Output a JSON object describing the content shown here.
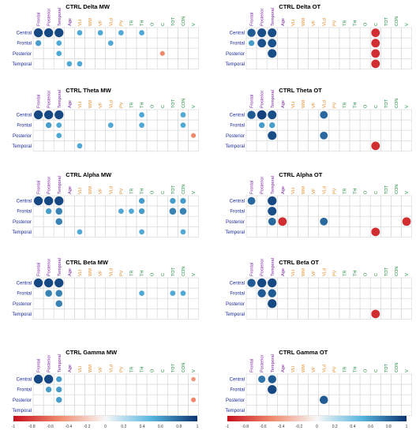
{
  "chart_data": {
    "type": "heatmap",
    "subtype": "correlation-circle-matrix",
    "rows": [
      "Central",
      "Frontal",
      "Posterior",
      "Temporal"
    ],
    "columns": [
      "Frontal",
      "Posterior",
      "Temporal",
      "Age",
      "VLI",
      "WM",
      "VF",
      "VLd",
      "PV",
      "TR",
      "TH",
      "O",
      "C",
      "TOT",
      "CON",
      "V"
    ],
    "column_colors": {
      "Frontal": "#7a1fa2",
      "Posterior": "#7a1fa2",
      "Temporal": "#7a1fa2",
      "Age": "#7a1fa2",
      "VLI": "#e8871e",
      "WM": "#e8871e",
      "VF": "#e8871e",
      "VLd": "#e8871e",
      "PV": "#e8871e",
      "TR": "#1a8a3a",
      "TH": "#1a8a3a",
      "O": "#1a8a3a",
      "C": "#1a8a3a",
      "TOT": "#1a8a3a",
      "CON": "#1a8a3a",
      "V": "#1a8a3a"
    },
    "row_label_color": "#1a2a9a",
    "grid": true,
    "colorbar": {
      "ticks": [
        -1,
        -0.8,
        -0.6,
        -0.4,
        -0.2,
        0,
        0.2,
        0.4,
        0.6,
        0.8,
        1
      ],
      "min": -1,
      "max": 1,
      "low_color": "#c8101e",
      "mid_color": "#f7f7f7",
      "high_color": "#0a3472"
    },
    "panels": [
      {
        "title": "CTRL Delta MW",
        "cells": [
          {
            "r": 0,
            "c": 0,
            "v": 0.92
          },
          {
            "r": 0,
            "c": 1,
            "v": 0.92
          },
          {
            "r": 0,
            "c": 2,
            "v": 0.92
          },
          {
            "r": 0,
            "c": 4,
            "v": 0.55
          },
          {
            "r": 0,
            "c": 6,
            "v": 0.55
          },
          {
            "r": 0,
            "c": 8,
            "v": 0.55
          },
          {
            "r": 0,
            "c": 10,
            "v": 0.55
          },
          {
            "r": 1,
            "c": 0,
            "v": 0.6
          },
          {
            "r": 1,
            "c": 2,
            "v": 0.55
          },
          {
            "r": 1,
            "c": 7,
            "v": 0.55
          },
          {
            "r": 2,
            "c": 2,
            "v": 0.55
          },
          {
            "r": 2,
            "c": 12,
            "v": -0.5
          },
          {
            "r": 3,
            "c": 3,
            "v": 0.55
          },
          {
            "r": 3,
            "c": 4,
            "v": 0.55
          }
        ]
      },
      {
        "title": "CTRL Delta OT",
        "cells": [
          {
            "r": 0,
            "c": 0,
            "v": 0.85
          },
          {
            "r": 0,
            "c": 1,
            "v": 0.9
          },
          {
            "r": 0,
            "c": 2,
            "v": 0.9
          },
          {
            "r": 0,
            "c": 12,
            "v": -0.88
          },
          {
            "r": 1,
            "c": 0,
            "v": 0.6
          },
          {
            "r": 1,
            "c": 1,
            "v": 0.88
          },
          {
            "r": 1,
            "c": 2,
            "v": 0.88
          },
          {
            "r": 1,
            "c": 12,
            "v": -0.88
          },
          {
            "r": 2,
            "c": 2,
            "v": 0.9
          },
          {
            "r": 2,
            "c": 12,
            "v": -0.88
          },
          {
            "r": 3,
            "c": 12,
            "v": -0.88
          }
        ]
      },
      {
        "title": "CTRL Theta MW",
        "cells": [
          {
            "r": 0,
            "c": 0,
            "v": 0.92
          },
          {
            "r": 0,
            "c": 1,
            "v": 0.92
          },
          {
            "r": 0,
            "c": 2,
            "v": 0.92
          },
          {
            "r": 0,
            "c": 10,
            "v": 0.55
          },
          {
            "r": 0,
            "c": 14,
            "v": 0.55
          },
          {
            "r": 1,
            "c": 1,
            "v": 0.6
          },
          {
            "r": 1,
            "c": 2,
            "v": 0.55
          },
          {
            "r": 1,
            "c": 7,
            "v": 0.55
          },
          {
            "r": 1,
            "c": 10,
            "v": 0.55
          },
          {
            "r": 1,
            "c": 14,
            "v": 0.55
          },
          {
            "r": 2,
            "c": 2,
            "v": 0.55
          },
          {
            "r": 2,
            "c": 15,
            "v": -0.5
          },
          {
            "r": 3,
            "c": 4,
            "v": 0.55
          }
        ]
      },
      {
        "title": "CTRL Theta OT",
        "cells": [
          {
            "r": 0,
            "c": 0,
            "v": 0.85
          },
          {
            "r": 0,
            "c": 1,
            "v": 0.95
          },
          {
            "r": 0,
            "c": 2,
            "v": 0.9
          },
          {
            "r": 0,
            "c": 7,
            "v": 0.8
          },
          {
            "r": 1,
            "c": 1,
            "v": 0.6
          },
          {
            "r": 1,
            "c": 2,
            "v": 0.6
          },
          {
            "r": 2,
            "c": 2,
            "v": 0.9
          },
          {
            "r": 2,
            "c": 7,
            "v": 0.8
          },
          {
            "r": 3,
            "c": 12,
            "v": -0.88
          }
        ]
      },
      {
        "title": "CTRL Alpha MW",
        "cells": [
          {
            "r": 0,
            "c": 0,
            "v": 0.92
          },
          {
            "r": 0,
            "c": 1,
            "v": 0.92
          },
          {
            "r": 0,
            "c": 2,
            "v": 0.92
          },
          {
            "r": 0,
            "c": 10,
            "v": 0.6
          },
          {
            "r": 0,
            "c": 13,
            "v": 0.6
          },
          {
            "r": 0,
            "c": 14,
            "v": 0.6
          },
          {
            "r": 1,
            "c": 1,
            "v": 0.6
          },
          {
            "r": 1,
            "c": 2,
            "v": 0.7
          },
          {
            "r": 1,
            "c": 8,
            "v": 0.55
          },
          {
            "r": 1,
            "c": 9,
            "v": 0.55
          },
          {
            "r": 1,
            "c": 10,
            "v": 0.6
          },
          {
            "r": 1,
            "c": 13,
            "v": 0.7
          },
          {
            "r": 1,
            "c": 14,
            "v": 0.7
          },
          {
            "r": 2,
            "c": 2,
            "v": 0.7
          },
          {
            "r": 3,
            "c": 4,
            "v": 0.55
          },
          {
            "r": 3,
            "c": 10,
            "v": 0.55
          },
          {
            "r": 3,
            "c": 14,
            "v": 0.55
          }
        ]
      },
      {
        "title": "CTRL Alpha OT",
        "cells": [
          {
            "r": 0,
            "c": 0,
            "v": 0.8
          },
          {
            "r": 0,
            "c": 2,
            "v": 0.92
          },
          {
            "r": 1,
            "c": 2,
            "v": 0.9
          },
          {
            "r": 2,
            "c": 2,
            "v": 0.8
          },
          {
            "r": 2,
            "c": 3,
            "v": -0.88
          },
          {
            "r": 2,
            "c": 7,
            "v": 0.8
          },
          {
            "r": 2,
            "c": 15,
            "v": -0.88
          },
          {
            "r": 3,
            "c": 12,
            "v": -0.88
          }
        ]
      },
      {
        "title": "CTRL Beta MW",
        "cells": [
          {
            "r": 0,
            "c": 0,
            "v": 0.92
          },
          {
            "r": 0,
            "c": 1,
            "v": 0.92
          },
          {
            "r": 0,
            "c": 2,
            "v": 0.92
          },
          {
            "r": 1,
            "c": 1,
            "v": 0.7
          },
          {
            "r": 1,
            "c": 2,
            "v": 0.7
          },
          {
            "r": 1,
            "c": 10,
            "v": 0.55
          },
          {
            "r": 1,
            "c": 13,
            "v": 0.55
          },
          {
            "r": 1,
            "c": 14,
            "v": 0.55
          },
          {
            "r": 2,
            "c": 2,
            "v": 0.7
          }
        ]
      },
      {
        "title": "CTRL Beta OT",
        "cells": [
          {
            "r": 0,
            "c": 0,
            "v": 0.85
          },
          {
            "r": 0,
            "c": 1,
            "v": 0.92
          },
          {
            "r": 0,
            "c": 2,
            "v": 0.92
          },
          {
            "r": 1,
            "c": 1,
            "v": 0.85
          },
          {
            "r": 1,
            "c": 2,
            "v": 0.85
          },
          {
            "r": 2,
            "c": 2,
            "v": 0.92
          },
          {
            "r": 3,
            "c": 12,
            "v": -0.88
          }
        ]
      },
      {
        "title": "CTRL Gamma MW",
        "cells": [
          {
            "r": 0,
            "c": 0,
            "v": 0.92
          },
          {
            "r": 0,
            "c": 1,
            "v": 0.92
          },
          {
            "r": 0,
            "c": 2,
            "v": 0.6
          },
          {
            "r": 0,
            "c": 15,
            "v": -0.45
          },
          {
            "r": 1,
            "c": 1,
            "v": 0.6
          },
          {
            "r": 1,
            "c": 2,
            "v": 0.6
          },
          {
            "r": 2,
            "c": 2,
            "v": 0.6
          },
          {
            "r": 2,
            "c": 15,
            "v": -0.5
          }
        ]
      },
      {
        "title": "CTRL Gamma OT",
        "cells": [
          {
            "r": 0,
            "c": 1,
            "v": 0.75
          },
          {
            "r": 0,
            "c": 2,
            "v": 0.85
          },
          {
            "r": 1,
            "c": 2,
            "v": 0.92
          },
          {
            "r": 2,
            "c": 7,
            "v": 0.85
          }
        ]
      }
    ]
  }
}
